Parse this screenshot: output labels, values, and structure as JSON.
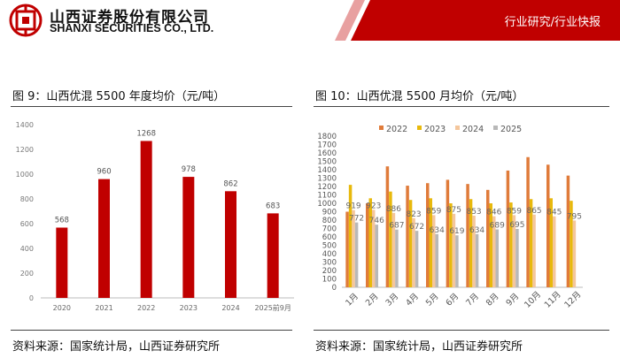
{
  "header": {
    "company_cn": "山西证券股份有限公司",
    "company_en": "SHANXI SECURITIES CO., LTD.",
    "category": "行业研究/行业快报",
    "brand_color": "#c00000"
  },
  "figures": [
    {
      "title": "图 9：山西优混 5500 年度均价（元/吨）",
      "source": "资料来源：国家统计局，山西证券研究所"
    },
    {
      "title": "图 10：山西优混 5500 月均价（元/吨）",
      "source": "资料来源：国家统计局，山西证券研究所"
    }
  ],
  "chart_data": [
    {
      "type": "bar",
      "categories": [
        "2020",
        "2021",
        "2022",
        "2023",
        "2024",
        "2025前9月"
      ],
      "values": [
        568,
        960,
        1268,
        978,
        862,
        683
      ],
      "ylim": [
        0,
        1400
      ],
      "yticks": [
        0,
        200,
        400,
        600,
        800,
        1000,
        1200,
        1400
      ],
      "color": "#c00000",
      "grid": false
    },
    {
      "type": "bar",
      "categories": [
        "1月",
        "2月",
        "3月",
        "4月",
        "5月",
        "6月",
        "7月",
        "8月",
        "9月",
        "10月",
        "11月",
        "12月"
      ],
      "ylim": [
        0,
        1800
      ],
      "yticks": [
        0,
        100,
        200,
        300,
        400,
        500,
        600,
        700,
        800,
        900,
        1000,
        1100,
        1200,
        1300,
        1400,
        1500,
        1600,
        1700,
        1800
      ],
      "legend_position": "top",
      "series": [
        {
          "name": "2022",
          "color": "#e07b3a",
          "values": [
            900,
            1000,
            1440,
            1210,
            1240,
            1280,
            1230,
            1160,
            1390,
            1550,
            1460,
            1330
          ]
        },
        {
          "name": "2023",
          "color": "#e8b90c",
          "values": [
            1220,
            1060,
            1140,
            1040,
            1060,
            1000,
            1050,
            1000,
            1010,
            1050,
            1060,
            1030
          ]
        },
        {
          "name": "2024",
          "color": "#f4c69c",
          "values": [
            919,
            923,
            886,
            823,
            859,
            875,
            853,
            846,
            859,
            865,
            845,
            795
          ]
        },
        {
          "name": "2025",
          "color": "#b8b8b8",
          "values": [
            772,
            746,
            687,
            672,
            634,
            619,
            634,
            689,
            695,
            null,
            null,
            null
          ]
        }
      ],
      "data_labels": [
        {
          "category": "1月",
          "series": "2024",
          "text": "919"
        },
        {
          "category": "1月",
          "series": "2025",
          "text": "772"
        },
        {
          "category": "2月",
          "series": "2024",
          "text": "923"
        },
        {
          "category": "2月",
          "series": "2025",
          "text": "746"
        },
        {
          "category": "3月",
          "series": "2024",
          "text": "886"
        },
        {
          "category": "3月",
          "series": "2025",
          "text": "687"
        },
        {
          "category": "4月",
          "series": "2024",
          "text": "823"
        },
        {
          "category": "4月",
          "series": "2025",
          "text": "672"
        },
        {
          "category": "5月",
          "series": "2024",
          "text": "859"
        },
        {
          "category": "5月",
          "series": "2025",
          "text": "634"
        },
        {
          "category": "6月",
          "series": "2024",
          "text": "875"
        },
        {
          "category": "6月",
          "series": "2025",
          "text": "619"
        },
        {
          "category": "7月",
          "series": "2024",
          "text": "853"
        },
        {
          "category": "7月",
          "series": "2025",
          "text": "634"
        },
        {
          "category": "8月",
          "series": "2024",
          "text": "846"
        },
        {
          "category": "8月",
          "series": "2025",
          "text": "689"
        },
        {
          "category": "9月",
          "series": "2024",
          "text": "859"
        },
        {
          "category": "9月",
          "series": "2025",
          "text": "695"
        },
        {
          "category": "10月",
          "series": "2024",
          "text": "865"
        },
        {
          "category": "11月",
          "series": "2024",
          "text": "845"
        },
        {
          "category": "12月",
          "series": "2024",
          "text": "795"
        }
      ]
    }
  ]
}
